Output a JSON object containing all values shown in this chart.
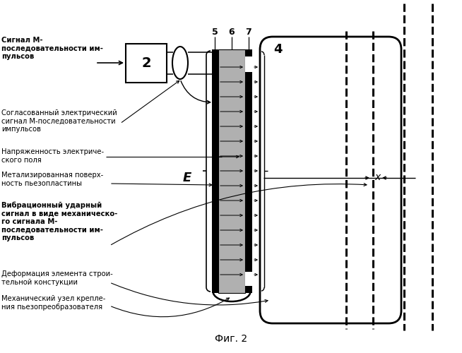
{
  "fig_caption": "Фиг. 2",
  "bg_color": "#ffffff",
  "label1": "Сигнал М-\nпоследовательности им-\nпульсов",
  "label2": "Согласованный электрический\nсигнал М-последовательности\nимпульсов",
  "label3": "Напряженность электриче-\nского поля",
  "label4": "Метализированная поверх-\nность пьезопластины",
  "label5_bold": "Вибрационный ударный\nсигнал в виде механическо-\nго сигнала М-\nпоследовательности им-\nпульсов",
  "label6": "Деформация элемента строи-\nтельной констукции",
  "label7": "Механический узел крепле-\nния пьезопреобразователя",
  "num2": "2",
  "num4": "4",
  "num5": "5",
  "num6": "6",
  "num7": "7",
  "label_E": "E",
  "label_x": "x"
}
